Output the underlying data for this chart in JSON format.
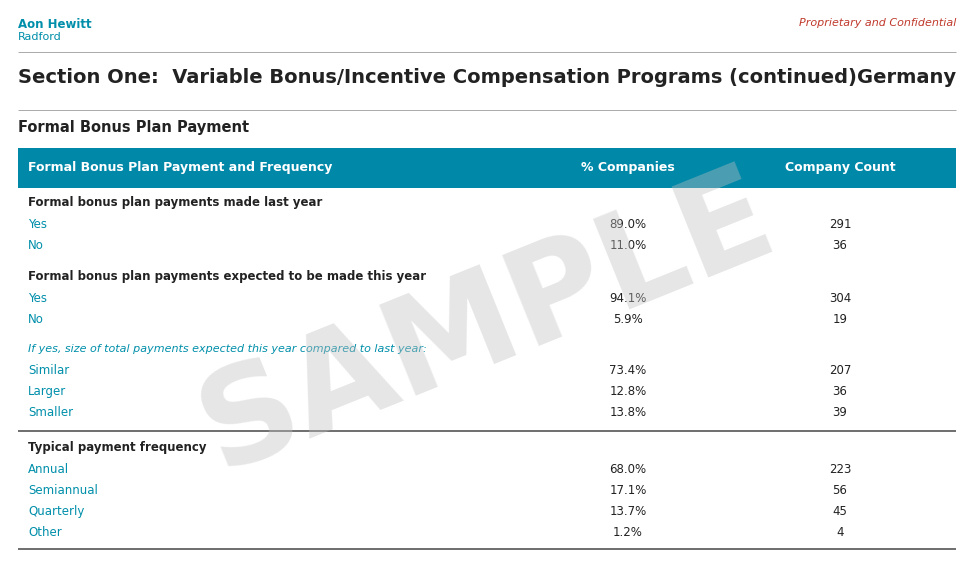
{
  "top_left_line1": "Aon Hewitt",
  "top_left_line2": "Radford",
  "top_right": "Proprietary and Confidential",
  "section_title": "Section One:  Variable Bonus/Incentive Compensation Programs (continued)",
  "country": "Germany",
  "sub_title": "Formal Bonus Plan Payment",
  "header_bg": "#0088a9",
  "header_col1": "Formal Bonus Plan Payment and Frequency",
  "header_col2": "% Companies",
  "header_col3": "Company Count",
  "rows": [
    {
      "type": "section",
      "label": "Formal bonus plan payments made last year",
      "col2": "",
      "col3": ""
    },
    {
      "type": "data",
      "label": "Yes",
      "col2": "89.0%",
      "col3": "291"
    },
    {
      "type": "data",
      "label": "No",
      "col2": "11.0%",
      "col3": "36"
    },
    {
      "type": "spacer"
    },
    {
      "type": "section",
      "label": "Formal bonus plan payments expected to be made this year",
      "col2": "",
      "col3": ""
    },
    {
      "type": "data",
      "label": "Yes",
      "col2": "94.1%",
      "col3": "304"
    },
    {
      "type": "data",
      "label": "No",
      "col2": "5.9%",
      "col3": "19"
    },
    {
      "type": "spacer"
    },
    {
      "type": "italic",
      "label": "If yes, size of total payments expected this year compared to last year:",
      "col2": "",
      "col3": ""
    },
    {
      "type": "data",
      "label": "Similar",
      "col2": "73.4%",
      "col3": "207"
    },
    {
      "type": "data",
      "label": "Larger",
      "col2": "12.8%",
      "col3": "36"
    },
    {
      "type": "data",
      "label": "Smaller",
      "col2": "13.8%",
      "col3": "39"
    },
    {
      "type": "divider"
    },
    {
      "type": "section",
      "label": "Typical payment frequency",
      "col2": "",
      "col3": ""
    },
    {
      "type": "data",
      "label": "Annual",
      "col2": "68.0%",
      "col3": "223"
    },
    {
      "type": "data",
      "label": "Semiannual",
      "col2": "17.1%",
      "col3": "56"
    },
    {
      "type": "data",
      "label": "Quarterly",
      "col2": "13.7%",
      "col3": "45"
    },
    {
      "type": "data",
      "label": "Other",
      "col2": "1.2%",
      "col3": "4"
    },
    {
      "type": "bottom_divider"
    }
  ],
  "bg_color": "#ffffff",
  "teal_color": "#008faa",
  "dark_text": "#222222",
  "prop_conf_color": "#c0392b",
  "fig_w": 9.74,
  "fig_h": 5.77,
  "dpi": 100
}
